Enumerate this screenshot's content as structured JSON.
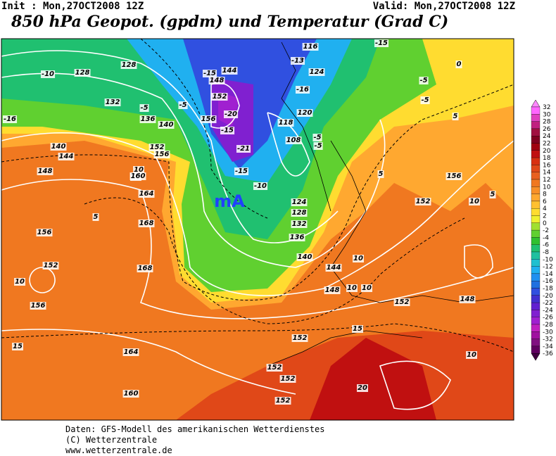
{
  "header": {
    "init": "Init : Mon,27OCT2008 12Z",
    "valid": "Valid: Mon,27OCT2008 12Z",
    "title": "850 hPa Geopot. (gpdm) und Temperatur (Grad C)"
  },
  "legend": {
    "levels": [
      32,
      30,
      28,
      26,
      24,
      22,
      20,
      18,
      16,
      14,
      12,
      10,
      8,
      6,
      4,
      2,
      0,
      -2,
      -4,
      -6,
      -8,
      -10,
      -12,
      -14,
      -16,
      -18,
      -20,
      -22,
      -24,
      -26,
      -28,
      -30,
      -32,
      -34,
      -36
    ],
    "colors": [
      "#ff66ff",
      "#e040c0",
      "#c02080",
      "#a01040",
      "#800020",
      "#a00010",
      "#c01010",
      "#d83010",
      "#e04818",
      "#e86020",
      "#f07820",
      "#f89028",
      "#ffa830",
      "#ffc030",
      "#ffdc30",
      "#f0f030",
      "#a0e030",
      "#60d030",
      "#30c030",
      "#20c070",
      "#20c0a0",
      "#20c0d0",
      "#20b0f0",
      "#2090f0",
      "#2070e0",
      "#3050e0",
      "#4030d0",
      "#6020d0",
      "#8020d0",
      "#a020d0",
      "#c020c0",
      "#a010a0",
      "#801080",
      "#600060"
    ]
  },
  "map": {
    "airmass": "mA",
    "labels": [
      128,
      128,
      132,
      136,
      140,
      -10,
      -5,
      -5,
      140,
      144,
      148,
      10,
      5,
      152,
      156,
      10,
      164,
      168,
      156,
      152,
      10,
      168,
      156,
      160,
      164,
      15,
      160,
      -15,
      -20,
      148,
      152,
      156,
      -15,
      -21,
      -15,
      -10,
      144,
      116,
      -13,
      124,
      -16,
      120,
      118,
      108,
      -5,
      -5,
      124,
      128,
      132,
      136,
      140,
      144,
      148,
      10,
      10,
      152,
      152,
      5,
      10,
      15,
      152,
      152,
      152,
      20,
      -5,
      -5,
      5,
      152,
      156,
      10,
      10,
      148,
      5,
      0,
      -16,
      -15
    ]
  },
  "footer": {
    "lines": [
      "Daten: GFS-Modell des amerikanischen Wetterdienstes",
      "(C) Wetterzentrale",
      "www.wetterzentrale.de"
    ]
  }
}
